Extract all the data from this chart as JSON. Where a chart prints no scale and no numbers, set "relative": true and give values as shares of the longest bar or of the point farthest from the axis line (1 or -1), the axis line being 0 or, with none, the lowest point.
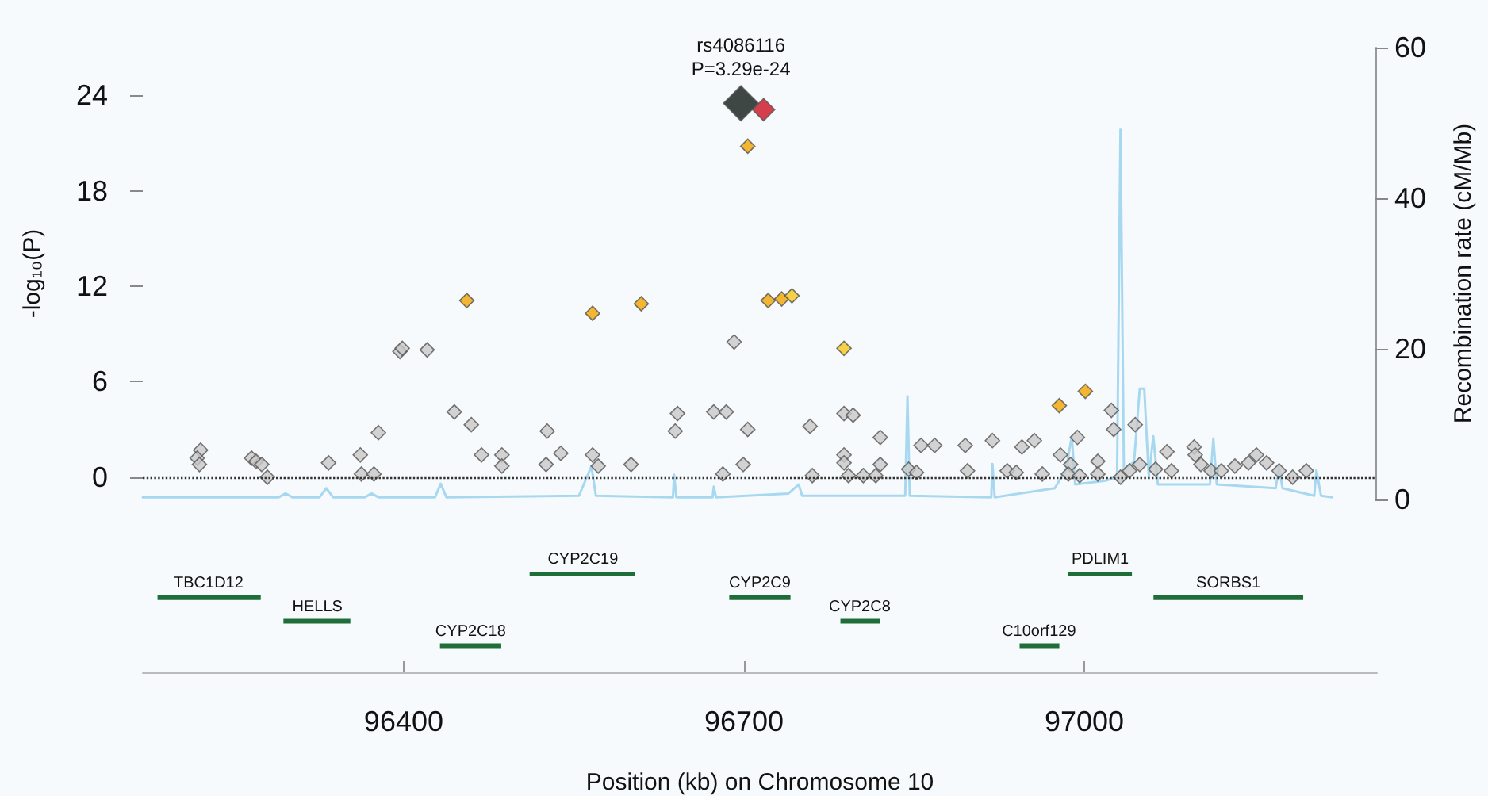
{
  "chart_data": [
    {
      "type": "scatter",
      "xlim": [
        96170,
        97258
      ],
      "ylim": [
        -1.4,
        27
      ],
      "yticks": [
        0,
        6,
        12,
        18,
        24
      ],
      "y2lim": [
        0,
        60
      ],
      "y2ticks": [
        0,
        20,
        40,
        60
      ],
      "ylabel": "-log₁₀(P)",
      "y2label": "Recombination rate (cM/Mb)",
      "tick_labels": "y",
      "marker": "diamond",
      "grid": false,
      "annotations": [
        {
          "text": "rs4086116\nP=3.29e-24",
          "x": 96698,
          "y": 23.5
        }
      ],
      "ref_lines": [
        {
          "axis": "y",
          "value": 0,
          "line_style": "dotted",
          "color": "#333333"
        }
      ],
      "series": [
        {
          "type": "line",
          "axis": "y2",
          "marker": "none",
          "color": "#a8d8ef",
          "x": [
            96170,
            96290,
            96296,
            96302,
            96326,
            96332,
            96338,
            96366,
            96372,
            96378,
            96428,
            96433,
            96438,
            96555,
            96566,
            96570,
            96638,
            96639,
            96641,
            96673,
            96674,
            96676,
            96740,
            96749,
            96752,
            96843,
            96845,
            96847,
            96919,
            96920,
            96922,
            96975,
            96985,
            96990,
            96993,
            97020,
            97030,
            97033,
            97036,
            97045,
            97050,
            97054,
            97058,
            97062,
            97066,
            97112,
            97115,
            97118,
            97170,
            97173,
            97176,
            97204,
            97206,
            97210,
            97220
          ],
          "values": [
            0.3,
            0.3,
            0.8,
            0.3,
            0.3,
            1.5,
            0.3,
            0.3,
            0.8,
            0.3,
            0.3,
            2.1,
            0.3,
            0.5,
            4.4,
            0.5,
            0.3,
            3.3,
            0.3,
            0.3,
            1.7,
            0.3,
            0.8,
            2.0,
            0.5,
            0.5,
            13.7,
            0.5,
            0.3,
            4.7,
            0.3,
            1.5,
            4.0,
            8.4,
            2.0,
            2.5,
            3.0,
            49.1,
            4.0,
            5.0,
            14.7,
            14.7,
            3.0,
            8.4,
            2.0,
            2.0,
            8.1,
            2.0,
            1.5,
            4.4,
            1.5,
            0.5,
            3.9,
            0.5,
            0.3
          ]
        },
        {
          "color": "#c8c8c8",
          "x": [
            96221,
            96218,
            96220,
            96266,
            96270,
            96275,
            96280,
            96334,
            96362,
            96363,
            96374,
            96378,
            96397,
            96399,
            96421,
            96445,
            96460,
            96469,
            96487,
            96487,
            96527,
            96526,
            96539,
            96567,
            96572,
            96601,
            96640,
            96642,
            96674,
            96685,
            96682,
            96692,
            96700,
            96704,
            96759,
            96761,
            96789,
            96797,
            96789,
            96789,
            96793,
            96806,
            96817,
            96821,
            96821,
            96846,
            96853,
            96857,
            96869,
            96896,
            96898,
            96920,
            96933,
            96941,
            96946,
            96957,
            96964,
            96980,
            96989,
            96995,
            96987,
            96997,
            97013,
            97013,
            97025,
            97027,
            97033,
            97041,
            97046,
            97050,
            97064,
            97074,
            97078,
            97098,
            97099,
            97104,
            97113,
            97122,
            97134,
            97146,
            97153,
            97162,
            97173,
            97185,
            97197
          ],
          "values": [
            1.7,
            1.2,
            0.8,
            1.2,
            1.0,
            0.8,
            0.0,
            0.9,
            1.4,
            0.2,
            0.2,
            2.8,
            7.9,
            8.1,
            8.0,
            4.1,
            3.3,
            1.4,
            1.4,
            0.7,
            2.9,
            0.8,
            1.5,
            1.4,
            0.7,
            0.8,
            2.9,
            4.0,
            4.1,
            4.1,
            0.2,
            8.5,
            0.8,
            3.0,
            3.2,
            0.1,
            4.0,
            3.9,
            1.4,
            0.9,
            0.1,
            0.1,
            0.1,
            0.8,
            2.5,
            0.5,
            0.3,
            2.0,
            2.0,
            2.0,
            0.4,
            2.3,
            0.4,
            0.3,
            1.9,
            2.3,
            0.2,
            1.4,
            0.8,
            2.5,
            0.2,
            0.1,
            1.0,
            0.2,
            4.2,
            3.0,
            0.0,
            0.4,
            3.3,
            0.8,
            0.5,
            1.6,
            0.4,
            1.9,
            1.4,
            0.8,
            0.4,
            0.4,
            0.7,
            0.9,
            1.4,
            0.9,
            0.4,
            0.0,
            0.4
          ]
        },
        {
          "color": "#f0a500",
          "x": [
            96704,
            96456,
            96567,
            96610,
            96722,
            96734,
            96979,
            97002
          ],
          "values": [
            20.8,
            11.1,
            10.3,
            10.9,
            11.1,
            11.2,
            4.5,
            5.4
          ]
        },
        {
          "color": "#f5c518",
          "x": [
            96743,
            96789
          ],
          "values": [
            11.4,
            8.1
          ]
        },
        {
          "color": "#cc1020",
          "x": [
            96718
          ],
          "values": [
            23.1
          ]
        },
        {
          "color": "#0f1a14",
          "x": [
            96698
          ],
          "values": [
            23.5
          ]
        }
      ]
    },
    {
      "type": "line",
      "relative": true,
      "xlim": [
        96170,
        97258
      ],
      "xticks": [
        96400,
        96700,
        97000
      ],
      "xlabel": "Position (kb) on Chromosome 10",
      "tick_labels": "x",
      "annotations": [
        {
          "text": "TBC1D12",
          "x": 96228,
          "y": 0.76
        },
        {
          "text": "HELLS",
          "x": 96324,
          "y": 0.52
        },
        {
          "text": "CYP2C18",
          "x": 96459,
          "y": 0.27
        },
        {
          "text": "CYP2C19",
          "x": 96558,
          "y": 1
        },
        {
          "text": "CYP2C9",
          "x": 96714,
          "y": 0.76
        },
        {
          "text": "CYP2C8",
          "x": 96802,
          "y": 0.52
        },
        {
          "text": "C10orf129",
          "x": 96960,
          "y": 0.27
        },
        {
          "text": "PDLIM1",
          "x": 97014,
          "y": 1
        },
        {
          "text": "SORBS1",
          "x": 97127,
          "y": 0.76
        }
      ],
      "series": [
        {
          "color": "#1f6e3a",
          "x": [
            96183,
            96274,
            null,
            96294,
            96353,
            null,
            96432,
            96486,
            null,
            96511,
            96604,
            null,
            96687,
            96741,
            null,
            96785,
            96820,
            null,
            96943,
            96978,
            null,
            96986,
            97042,
            null,
            97061,
            97193
          ],
          "values": [
            0.76,
            0.76,
            null,
            0.52,
            0.52,
            null,
            0.27,
            0.27,
            null,
            1,
            1,
            null,
            0.76,
            0.76,
            null,
            0.52,
            0.52,
            null,
            0.27,
            0.27,
            null,
            1,
            1,
            null,
            0.76,
            0.76
          ]
        }
      ]
    }
  ]
}
